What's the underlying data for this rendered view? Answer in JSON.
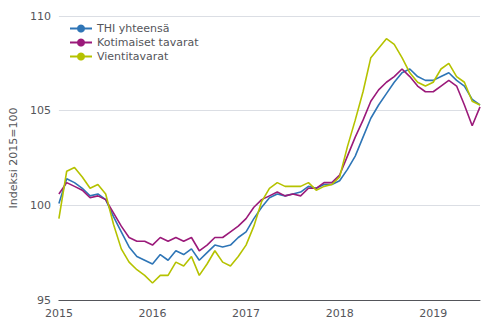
{
  "chart_data": {
    "type": "line",
    "ylabel": "Indeksi 2015=100",
    "categories": [
      "2015",
      null,
      null,
      null,
      null,
      null,
      null,
      null,
      null,
      null,
      null,
      null,
      "2016",
      null,
      null,
      null,
      null,
      null,
      null,
      null,
      null,
      null,
      null,
      null,
      "2017",
      null,
      null,
      null,
      null,
      null,
      null,
      null,
      null,
      null,
      null,
      null,
      "2018",
      null,
      null,
      null,
      null,
      null,
      null,
      null,
      null,
      null,
      null,
      null,
      "2019",
      null,
      null,
      null,
      null,
      null,
      null
    ],
    "series": [
      {
        "name": "THI yhteensä",
        "color": "#2e75b6",
        "values": [
          100.1,
          101.4,
          101.2,
          100.9,
          100.5,
          100.6,
          100.3,
          99.4,
          98.6,
          97.8,
          97.3,
          97.1,
          96.9,
          97.4,
          97.1,
          97.6,
          97.4,
          97.7,
          97.1,
          97.5,
          97.9,
          97.8,
          97.9,
          98.3,
          98.6,
          99.3,
          99.9,
          100.4,
          100.6,
          100.5,
          100.6,
          100.7,
          101.0,
          100.9,
          101.1,
          101.1,
          101.3,
          101.9,
          102.6,
          103.6,
          104.6,
          105.3,
          105.9,
          106.5,
          107.0,
          107.2,
          106.8,
          106.6,
          106.6,
          106.8,
          107.0,
          106.6,
          106.3,
          105.6,
          105.3
        ]
      },
      {
        "name": "Kotimaiset tavarat",
        "color": "#9b1a7a",
        "values": [
          100.6,
          101.2,
          101.0,
          100.8,
          100.4,
          100.5,
          100.3,
          99.6,
          98.9,
          98.3,
          98.1,
          98.1,
          97.9,
          98.3,
          98.1,
          98.3,
          98.1,
          98.3,
          97.6,
          97.9,
          98.3,
          98.3,
          98.6,
          98.9,
          99.3,
          99.9,
          100.3,
          100.5,
          100.7,
          100.5,
          100.6,
          100.5,
          100.9,
          100.9,
          101.2,
          101.2,
          101.6,
          102.6,
          103.6,
          104.5,
          105.5,
          106.1,
          106.5,
          106.8,
          107.2,
          106.8,
          106.3,
          106.0,
          106.0,
          106.3,
          106.6,
          106.3,
          105.3,
          104.2,
          105.2
        ]
      },
      {
        "name": "Vientitavarat",
        "color": "#b5c200",
        "values": [
          99.3,
          101.8,
          102.0,
          101.5,
          100.9,
          101.1,
          100.6,
          99.0,
          97.7,
          97.0,
          96.6,
          96.3,
          95.9,
          96.3,
          96.3,
          97.0,
          96.8,
          97.3,
          96.3,
          96.9,
          97.6,
          97.0,
          96.8,
          97.3,
          97.9,
          98.9,
          100.2,
          100.9,
          101.2,
          101.0,
          101.0,
          101.0,
          101.2,
          100.8,
          101.0,
          101.1,
          101.5,
          103.1,
          104.5,
          106.0,
          107.8,
          108.3,
          108.8,
          108.5,
          107.8,
          107.0,
          106.5,
          106.3,
          106.5,
          107.2,
          107.5,
          106.8,
          106.5,
          105.5,
          105.3
        ]
      }
    ],
    "ylim": [
      95,
      110
    ],
    "yticks": [
      95,
      100,
      105,
      110
    ],
    "grid": true,
    "legend": "upper left"
  }
}
